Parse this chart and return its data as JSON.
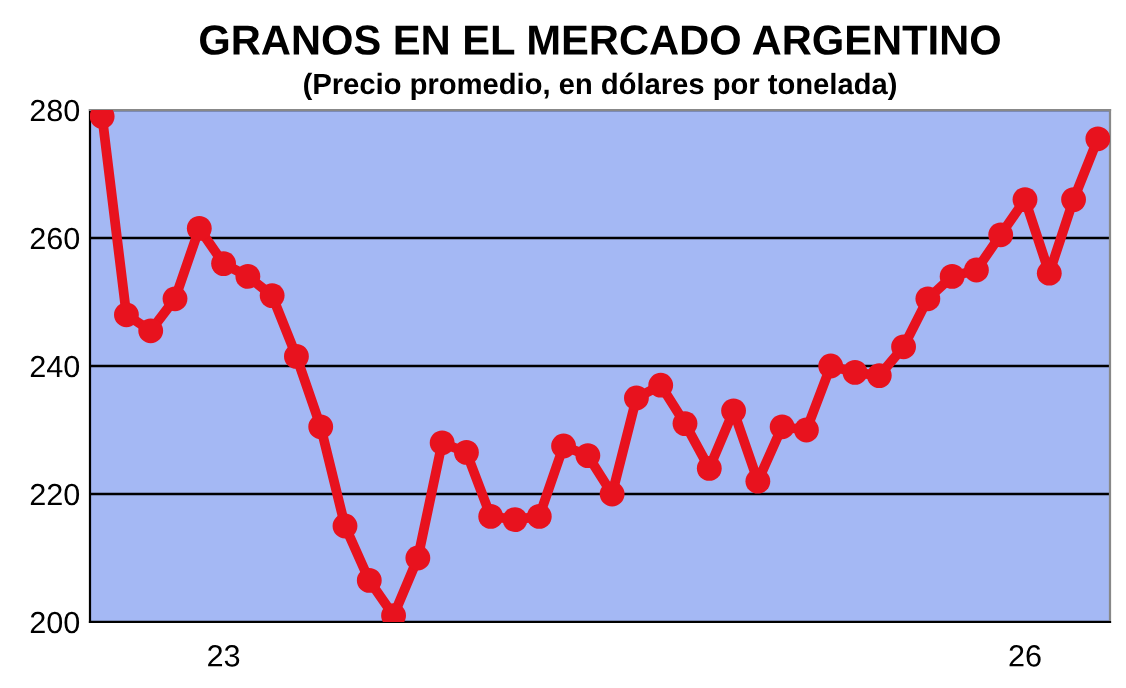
{
  "chart_data": {
    "type": "line",
    "title": "GRANOS EN EL MERCADO ARGENTINO",
    "subtitle": "(Precio promedio, en dólares por tonelada)",
    "categories": [
      null,
      null,
      null,
      null,
      null,
      "23",
      null,
      null,
      null,
      null,
      null,
      null,
      null,
      null,
      null,
      null,
      null,
      null,
      null,
      null,
      null,
      null,
      null,
      null,
      null,
      null,
      null,
      null,
      null,
      null,
      null,
      null,
      null,
      null,
      null,
      null,
      null,
      null,
      "26",
      null,
      null,
      null
    ],
    "series": [
      {
        "color": "#e8121e",
        "values": [
          279,
          248,
          245.5,
          250.5,
          261.5,
          256,
          254,
          251,
          241.5,
          230.5,
          215,
          206.5,
          201,
          210,
          228,
          226.5,
          216.5,
          216,
          216.5,
          227.5,
          226,
          220,
          235,
          237,
          231,
          224,
          233,
          222,
          230.5,
          230,
          240,
          239,
          238.5,
          243,
          250.5,
          254,
          255,
          260.5,
          266,
          254.5,
          266,
          275.5
        ]
      }
    ],
    "ylim": [
      200,
      280
    ],
    "yticks": [
      200,
      220,
      240,
      260,
      280
    ],
    "grid": "y",
    "legend": false,
    "marker": "circle",
    "line_style": "solid"
  }
}
